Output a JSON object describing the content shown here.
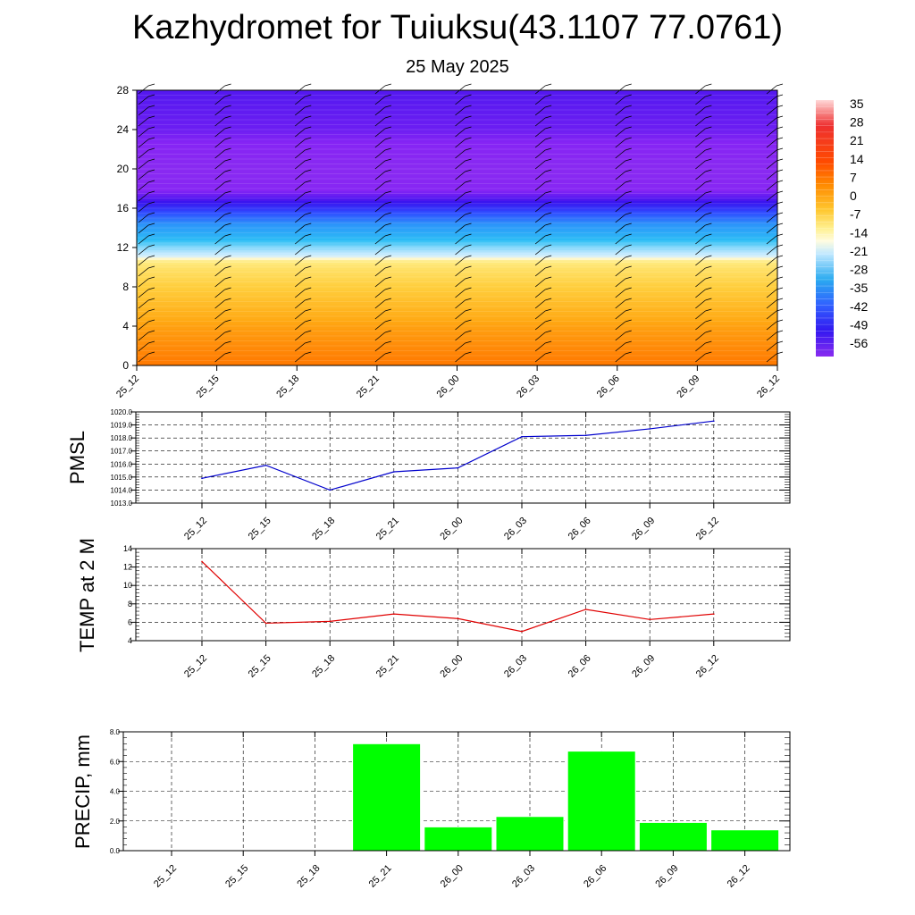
{
  "title": "Kazhydromet for Tuiuksu(43.1107 77.0761)",
  "subtitle": "25 May 2025",
  "chart_data": [
    {
      "type": "heatmap",
      "x_ticks": [
        "25_12",
        "25_15",
        "25_18",
        "25_21",
        "26_00",
        "26_03",
        "26_06",
        "26_09",
        "26_12"
      ],
      "y_ticks": [
        "0",
        "4",
        "8",
        "12",
        "16",
        "20",
        "24",
        "28"
      ],
      "ylim": [
        0,
        28
      ],
      "colorbar": {
        "labels": [
          "35",
          "28",
          "21",
          "14",
          "7",
          "0",
          "-7",
          "-14",
          "-21",
          "-28",
          "-35",
          "-42",
          "-49",
          "-56"
        ],
        "range": [
          -60,
          38
        ]
      },
      "temperature_profile": [
        {
          "z": 0,
          "t": 8
        },
        {
          "z": 2,
          "t": 6
        },
        {
          "z": 4,
          "t": 4
        },
        {
          "z": 6,
          "t": 1
        },
        {
          "z": 8,
          "t": -2
        },
        {
          "z": 10,
          "t": -6
        },
        {
          "z": 10.8,
          "t": -9
        },
        {
          "z": 11,
          "t": -14
        },
        {
          "z": 12,
          "t": -20
        },
        {
          "z": 13,
          "t": -28
        },
        {
          "z": 14,
          "t": -34
        },
        {
          "z": 15,
          "t": -40
        },
        {
          "z": 16,
          "t": -46
        },
        {
          "z": 17,
          "t": -52
        },
        {
          "z": 18,
          "t": -57
        },
        {
          "z": 20,
          "t": -59
        },
        {
          "z": 22,
          "t": -57
        },
        {
          "z": 24,
          "t": -54
        },
        {
          "z": 28,
          "t": -52
        }
      ],
      "wind_barbs": "present",
      "grid": false
    },
    {
      "type": "line",
      "ylabel": "PMSL",
      "categories": [
        "25_12",
        "25_15",
        "25_18",
        "25_21",
        "26_00",
        "26_03",
        "26_06",
        "26_09",
        "26_12"
      ],
      "values": [
        1014.9,
        1015.9,
        1014.0,
        1015.4,
        1015.7,
        1018.1,
        1018.2,
        1018.7,
        1019.3
      ],
      "y_ticks": [
        "1013.0",
        "1014.0",
        "1015.0",
        "1016.0",
        "1017.0",
        "1018.0",
        "1019.0",
        "1020.0"
      ],
      "ylim": [
        1013,
        1020
      ],
      "color": "#0000cc",
      "grid": true
    },
    {
      "type": "line",
      "ylabel": "TEMP at 2 M",
      "categories": [
        "25_12",
        "25_15",
        "25_18",
        "25_21",
        "26_00",
        "26_03",
        "26_06",
        "26_09",
        "26_12"
      ],
      "values": [
        12.6,
        5.9,
        6.1,
        6.9,
        6.4,
        5.0,
        7.4,
        6.3,
        6.9
      ],
      "y_ticks": [
        "4",
        "6",
        "8",
        "10",
        "12",
        "14"
      ],
      "ylim": [
        4,
        14
      ],
      "color": "#e00000",
      "grid": true
    },
    {
      "type": "bar",
      "ylabel": "PRECIP, mm",
      "categories": [
        "25_12",
        "25_15",
        "25_18",
        "25_21",
        "26_00",
        "26_03",
        "26_06",
        "26_09",
        "26_12"
      ],
      "values": [
        0,
        0,
        0,
        7.2,
        1.6,
        2.3,
        6.7,
        1.9,
        1.4
      ],
      "y_ticks": [
        "0.0",
        "2.0",
        "4.0",
        "6.0",
        "8.0"
      ],
      "ylim": [
        0,
        8
      ],
      "color": "#00ff00",
      "grid": true
    }
  ]
}
